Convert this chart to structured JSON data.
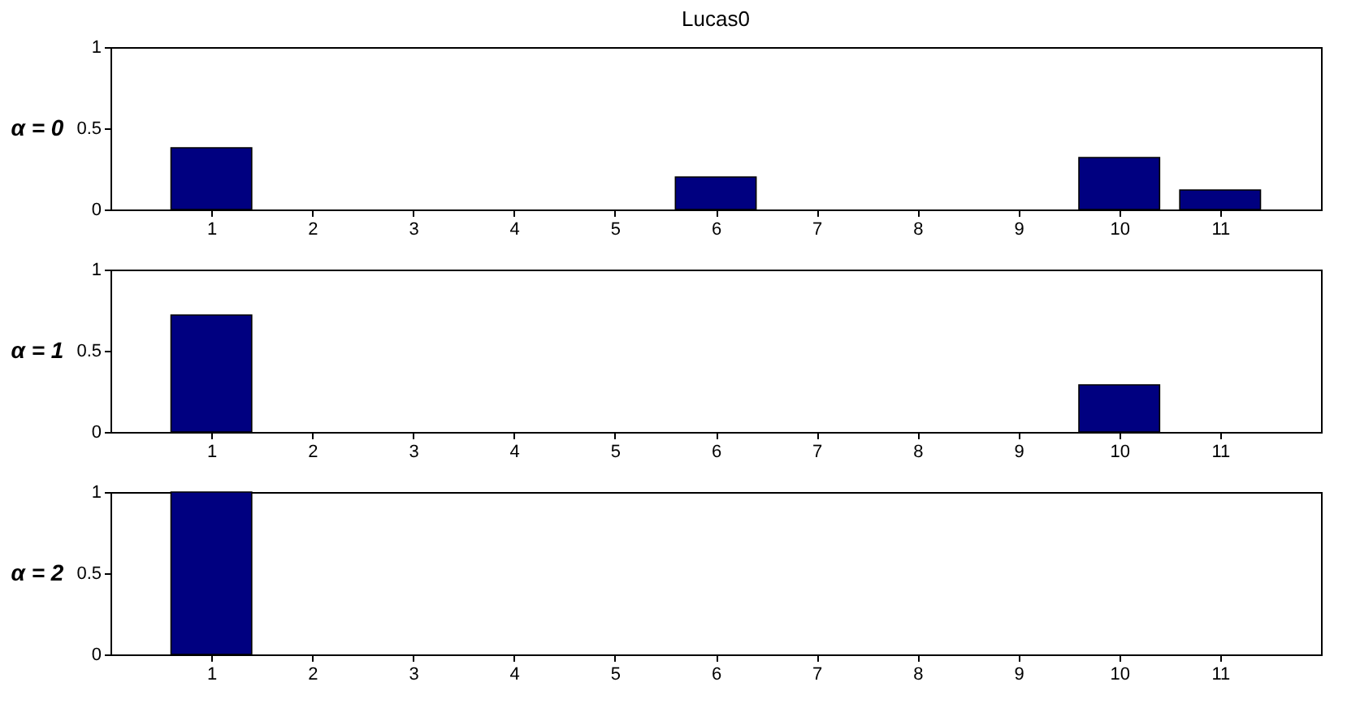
{
  "chart_data": [
    {
      "type": "bar",
      "title": "Lucas0",
      "ylabel": "α = 0",
      "x": [
        1,
        2,
        3,
        4,
        5,
        6,
        7,
        8,
        9,
        10,
        11
      ],
      "values": [
        0.38,
        0,
        0,
        0,
        0,
        0.2,
        0,
        0,
        0,
        0.32,
        0.12
      ],
      "color": "#000080",
      "xlim": [
        0,
        12
      ],
      "xticks": [
        1,
        2,
        3,
        4,
        5,
        6,
        7,
        8,
        9,
        10,
        11
      ],
      "ylim": [
        0,
        1
      ],
      "yticks": [
        0,
        0.5,
        1
      ],
      "grid": false
    },
    {
      "type": "bar",
      "ylabel": "α = 1",
      "x": [
        1,
        2,
        3,
        4,
        5,
        6,
        7,
        8,
        9,
        10,
        11
      ],
      "values": [
        0.72,
        0,
        0,
        0,
        0,
        0,
        0,
        0,
        0,
        0.29,
        0
      ],
      "color": "#000080",
      "xlim": [
        0,
        12
      ],
      "xticks": [
        1,
        2,
        3,
        4,
        5,
        6,
        7,
        8,
        9,
        10,
        11
      ],
      "ylim": [
        0,
        1
      ],
      "yticks": [
        0,
        0.5,
        1
      ],
      "grid": false
    },
    {
      "type": "bar",
      "ylabel": "α = 2",
      "x": [
        1,
        2,
        3,
        4,
        5,
        6,
        7,
        8,
        9,
        10,
        11
      ],
      "values": [
        1,
        0,
        0,
        0,
        0,
        0,
        0,
        0,
        0,
        0,
        0
      ],
      "color": "#000080",
      "xlim": [
        0,
        12
      ],
      "xticks": [
        1,
        2,
        3,
        4,
        5,
        6,
        7,
        8,
        9,
        10,
        11
      ],
      "ylim": [
        0,
        1
      ],
      "yticks": [
        0,
        0.5,
        1
      ],
      "grid": false
    }
  ]
}
